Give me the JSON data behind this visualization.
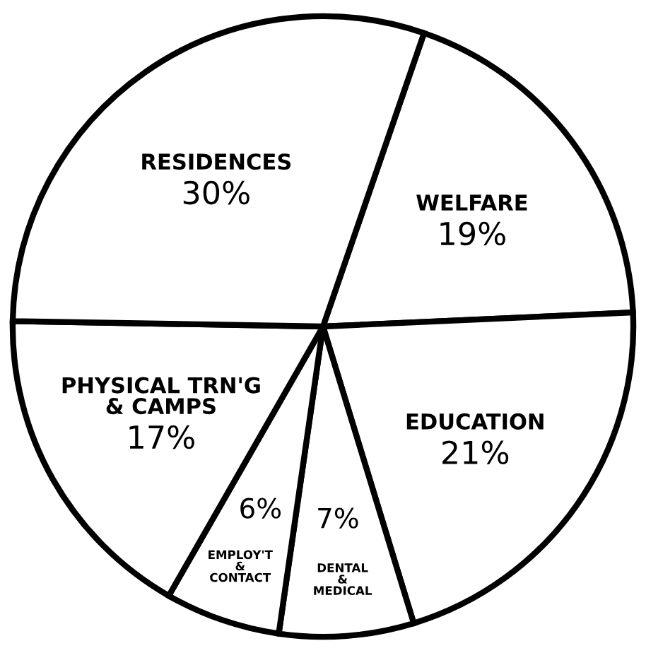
{
  "chart_data": {
    "type": "pie",
    "categories": [
      "WELFARE",
      "EDUCATION",
      "DENTAL\n&\nMEDICAL",
      "EMPLOY'T\n&\nCONTACT",
      "PHYSICAL TRN'G\n& CAMPS",
      "RESIDENCES"
    ],
    "values": [
      19,
      21,
      7,
      6,
      17,
      30
    ],
    "value_labels": [
      "19%",
      "21%",
      "7%",
      "6%",
      "17%",
      "30%"
    ],
    "colors": [
      "#ffffff",
      "#ffffff",
      "#ffffff",
      "#ffffff",
      "#ffffff",
      "#ffffff"
    ]
  }
}
